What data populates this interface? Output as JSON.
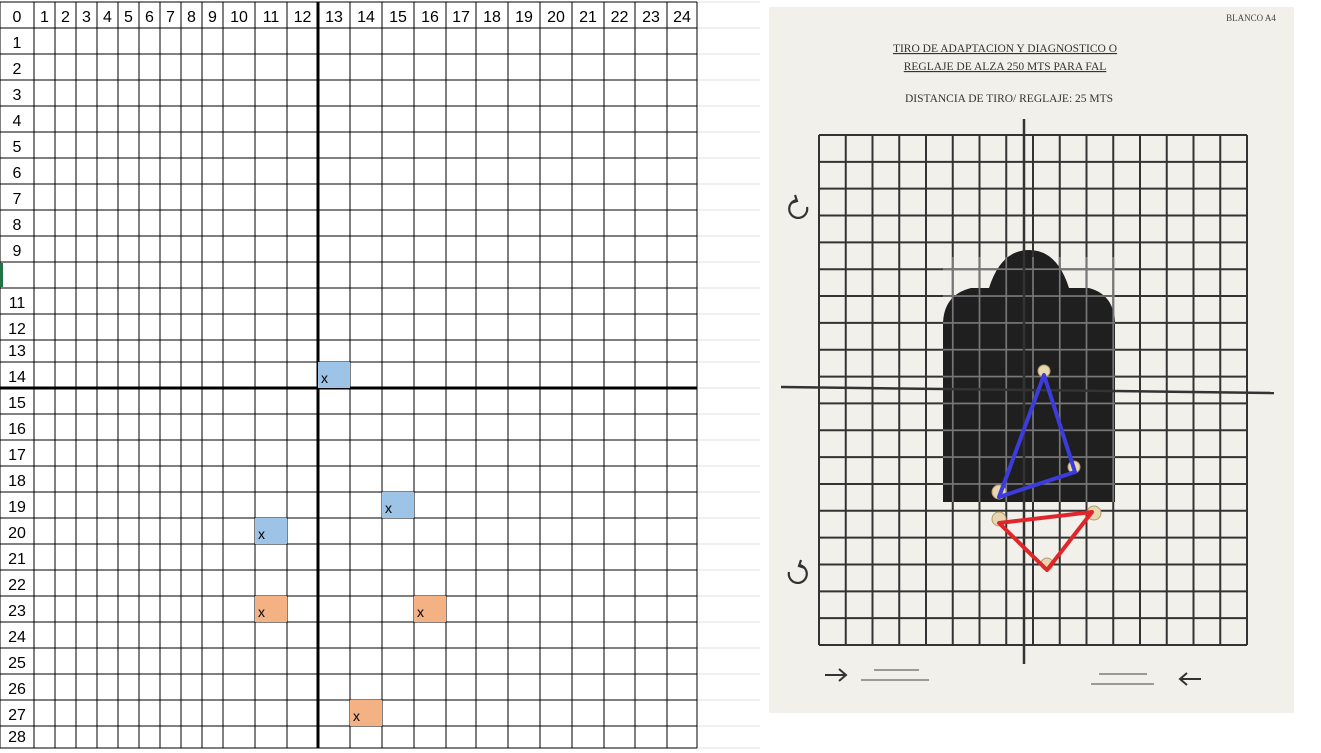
{
  "sheet": {
    "column_headers": [
      "0",
      "1",
      "2",
      "3",
      "4",
      "5",
      "6",
      "7",
      "8",
      "9",
      "10",
      "11",
      "12",
      "13",
      "14",
      "15",
      "16",
      "17",
      "18",
      "19",
      "20",
      "21",
      "22",
      "23",
      "24"
    ],
    "row_headers": [
      "1",
      "2",
      "3",
      "4",
      "5",
      "6",
      "7",
      "8",
      "9",
      "",
      "11",
      "12",
      "13",
      "14",
      "15",
      "16",
      "17",
      "18",
      "19",
      "20",
      "21",
      "22",
      "23",
      "24",
      "25",
      "26",
      "27",
      "28"
    ],
    "axis": {
      "column": 13,
      "row": 14
    },
    "marks": [
      {
        "col": 13,
        "row": 14,
        "label": "x",
        "color": "#9dc3e6"
      },
      {
        "col": 15,
        "row": 19,
        "label": "x",
        "color": "#9dc3e6"
      },
      {
        "col": 11,
        "row": 20,
        "label": "x",
        "color": "#9dc3e6"
      },
      {
        "col": 11,
        "row": 23,
        "label": "x",
        "color": "#f4b183"
      },
      {
        "col": 16,
        "row": 23,
        "label": "x",
        "color": "#f4b183"
      },
      {
        "col": 14,
        "row": 27,
        "label": "x",
        "color": "#f4b183"
      }
    ]
  },
  "target_photo": {
    "corner_label": "BLANCO A4",
    "title_line_1": "TIRO DE ADAPTACION Y DIAGNOSTICO O",
    "title_line_2": "REGLAJE DE ALZA 250 MTS PARA FAL",
    "distance_text": "DISTANCIA DE TIRO/ REGLAJE: 25 MTS",
    "blue_group_color": "#3c3cdc",
    "red_group_color": "#e0262a"
  }
}
